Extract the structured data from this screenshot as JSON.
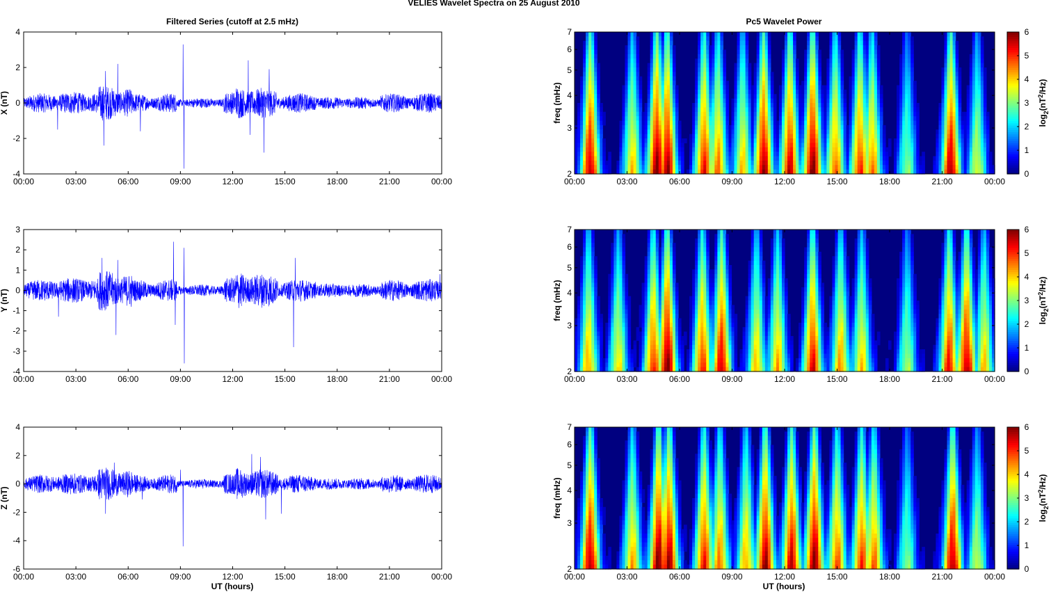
{
  "figure": {
    "suptitle": "VELIES Wavelet Spectra on 25 August    2010",
    "left_title": "Filtered Series (cutoff at 2.5 mHz)",
    "right_title": "Pc5 Wavelet Power",
    "xlabel": "UT (hours)"
  },
  "chart_data": [
    {
      "type": "line",
      "title": "Filtered Series (cutoff at 2.5 mHz)",
      "xlabel": "",
      "ylabel": "X (nT)",
      "xlim": [
        0,
        24
      ],
      "ylim": [
        -4,
        4
      ],
      "yticks": [
        "-4",
        "-2",
        "0",
        "2",
        "4"
      ],
      "xticks": [
        "00:00",
        "03:00",
        "06:00",
        "09:00",
        "12:00",
        "15:00",
        "18:00",
        "21:00",
        "00:00"
      ],
      "color": "#0000ff",
      "base_amplitude": 0.25,
      "spikes": [
        {
          "t": 4.6,
          "v": -2.4
        },
        {
          "t": 4.7,
          "v": 1.8
        },
        {
          "t": 5.4,
          "v": 2.2
        },
        {
          "t": 6.7,
          "v": -1.6
        },
        {
          "t": 9.15,
          "v": 3.3
        },
        {
          "t": 9.2,
          "v": -3.7
        },
        {
          "t": 12.9,
          "v": 2.4
        },
        {
          "t": 13.0,
          "v": -1.8
        },
        {
          "t": 13.8,
          "v": -2.8
        },
        {
          "t": 14.1,
          "v": 1.9
        },
        {
          "t": 1.95,
          "v": -1.5
        }
      ]
    },
    {
      "type": "line",
      "xlabel": "",
      "ylabel": "Y (nT)",
      "xlim": [
        0,
        24
      ],
      "ylim": [
        -4,
        3
      ],
      "yticks": [
        "-4",
        "-3",
        "-2",
        "-1",
        "0",
        "1",
        "2",
        "3"
      ],
      "xticks": [
        "00:00",
        "03:00",
        "06:00",
        "09:00",
        "12:00",
        "15:00",
        "18:00",
        "21:00",
        "00:00"
      ],
      "color": "#0000ff",
      "base_amplitude": 0.25,
      "spikes": [
        {
          "t": 5.3,
          "v": -2.2
        },
        {
          "t": 5.4,
          "v": 1.5
        },
        {
          "t": 4.5,
          "v": 1.6
        },
        {
          "t": 8.6,
          "v": 2.4
        },
        {
          "t": 8.7,
          "v": -1.7
        },
        {
          "t": 9.2,
          "v": 2.1
        },
        {
          "t": 9.22,
          "v": -3.6
        },
        {
          "t": 15.5,
          "v": -2.8
        },
        {
          "t": 15.6,
          "v": 1.6
        },
        {
          "t": 2.0,
          "v": -1.3
        },
        {
          "t": 23.9,
          "v": 0.8
        }
      ]
    },
    {
      "type": "line",
      "xlabel": "UT (hours)",
      "ylabel": "Z (nT)",
      "xlim": [
        0,
        24
      ],
      "ylim": [
        -6,
        4
      ],
      "yticks": [
        "-6",
        "-4",
        "-2",
        "0",
        "2",
        "4"
      ],
      "xticks": [
        "00:00",
        "03:00",
        "06:00",
        "09:00",
        "12:00",
        "15:00",
        "18:00",
        "21:00",
        "00:00"
      ],
      "color": "#0000ff",
      "base_amplitude": 0.3,
      "spikes": [
        {
          "t": 4.7,
          "v": -2.1
        },
        {
          "t": 5.2,
          "v": 1.5
        },
        {
          "t": 9.15,
          "v": -4.4
        },
        {
          "t": 9.0,
          "v": 1.0
        },
        {
          "t": 13.1,
          "v": 2.1
        },
        {
          "t": 13.6,
          "v": 1.9
        },
        {
          "t": 13.9,
          "v": -2.5
        },
        {
          "t": 14.8,
          "v": -2.1
        },
        {
          "t": 6.8,
          "v": -1.1
        }
      ]
    },
    {
      "type": "heatmap",
      "title": "Pc5 Wavelet Power",
      "xlabel": "",
      "ylabel": "freq (mHz)",
      "xlim": [
        0,
        24
      ],
      "ylim": [
        2,
        7
      ],
      "yscale": "log",
      "yticks": [
        "2",
        "3",
        "4",
        "5",
        "6",
        "7"
      ],
      "xticks": [
        "00:00",
        "03:00",
        "06:00",
        "09:00",
        "12:00",
        "15:00",
        "18:00",
        "21:00",
        "00:00"
      ],
      "colorbar": {
        "label": "log2(nT^2/Hz)",
        "range": [
          0,
          6
        ],
        "ticks": [
          "0",
          "1",
          "2",
          "3",
          "4",
          "5",
          "6"
        ],
        "colormap": "jet"
      },
      "blobs": [
        {
          "t": 0.9,
          "a": 5.6
        },
        {
          "t": 3.3,
          "a": 4.0
        },
        {
          "t": 4.7,
          "a": 6.0
        },
        {
          "t": 5.3,
          "a": 5.8
        },
        {
          "t": 7.4,
          "a": 5.2
        },
        {
          "t": 8.2,
          "a": 4.5
        },
        {
          "t": 9.6,
          "a": 4.0
        },
        {
          "t": 10.8,
          "a": 5.8
        },
        {
          "t": 12.3,
          "a": 5.5
        },
        {
          "t": 13.6,
          "a": 6.0
        },
        {
          "t": 14.9,
          "a": 4.6
        },
        {
          "t": 16.3,
          "a": 5.0
        },
        {
          "t": 17.0,
          "a": 4.5
        },
        {
          "t": 19.0,
          "a": 3.0
        },
        {
          "t": 21.5,
          "a": 5.7
        },
        {
          "t": 23.0,
          "a": 3.5
        }
      ]
    },
    {
      "type": "heatmap",
      "xlabel": "",
      "ylabel": "freq (mHz)",
      "xlim": [
        0,
        24
      ],
      "ylim": [
        2,
        7
      ],
      "yscale": "log",
      "yticks": [
        "2",
        "3",
        "4",
        "5",
        "6",
        "7"
      ],
      "xticks": [
        "00:00",
        "03:00",
        "06:00",
        "09:00",
        "12:00",
        "15:00",
        "18:00",
        "21:00",
        "00:00"
      ],
      "colorbar": {
        "label": "log2(nT^2/Hz)",
        "range": [
          0,
          6
        ],
        "ticks": [
          "0",
          "1",
          "2",
          "3",
          "4",
          "5",
          "6"
        ],
        "colormap": "jet"
      },
      "blobs": [
        {
          "t": 0.8,
          "a": 4.2
        },
        {
          "t": 2.5,
          "a": 3.8
        },
        {
          "t": 4.5,
          "a": 5.0
        },
        {
          "t": 5.3,
          "a": 6.0
        },
        {
          "t": 7.3,
          "a": 5.0
        },
        {
          "t": 8.4,
          "a": 5.5
        },
        {
          "t": 10.4,
          "a": 4.0
        },
        {
          "t": 11.6,
          "a": 4.2
        },
        {
          "t": 13.6,
          "a": 5.4
        },
        {
          "t": 15.2,
          "a": 4.3
        },
        {
          "t": 16.4,
          "a": 4.0
        },
        {
          "t": 19.0,
          "a": 3.2
        },
        {
          "t": 21.4,
          "a": 5.2
        },
        {
          "t": 22.4,
          "a": 5.6
        },
        {
          "t": 23.4,
          "a": 4.0
        }
      ]
    },
    {
      "type": "heatmap",
      "xlabel": "UT (hours)",
      "ylabel": "freq (mHz)",
      "xlim": [
        0,
        24
      ],
      "ylim": [
        2,
        7
      ],
      "yscale": "log",
      "yticks": [
        "2",
        "3",
        "4",
        "5",
        "6",
        "7"
      ],
      "xticks": [
        "00:00",
        "03:00",
        "06:00",
        "09:00",
        "12:00",
        "15:00",
        "18:00",
        "21:00",
        "00:00"
      ],
      "colorbar": {
        "label": "log2(nT^2/Hz)",
        "range": [
          0,
          6
        ],
        "ticks": [
          "0",
          "1",
          "2",
          "3",
          "4",
          "5",
          "6"
        ],
        "colormap": "jet"
      },
      "blobs": [
        {
          "t": 0.9,
          "a": 5.7
        },
        {
          "t": 3.3,
          "a": 4.2
        },
        {
          "t": 4.8,
          "a": 6.0
        },
        {
          "t": 5.4,
          "a": 5.8
        },
        {
          "t": 7.4,
          "a": 5.2
        },
        {
          "t": 8.3,
          "a": 4.5
        },
        {
          "t": 9.8,
          "a": 4.2
        },
        {
          "t": 10.9,
          "a": 5.8
        },
        {
          "t": 12.4,
          "a": 5.6
        },
        {
          "t": 13.7,
          "a": 6.0
        },
        {
          "t": 15.0,
          "a": 4.7
        },
        {
          "t": 16.4,
          "a": 5.0
        },
        {
          "t": 17.1,
          "a": 4.6
        },
        {
          "t": 19.0,
          "a": 3.0
        },
        {
          "t": 21.6,
          "a": 5.7
        },
        {
          "t": 23.0,
          "a": 3.4
        }
      ]
    }
  ]
}
